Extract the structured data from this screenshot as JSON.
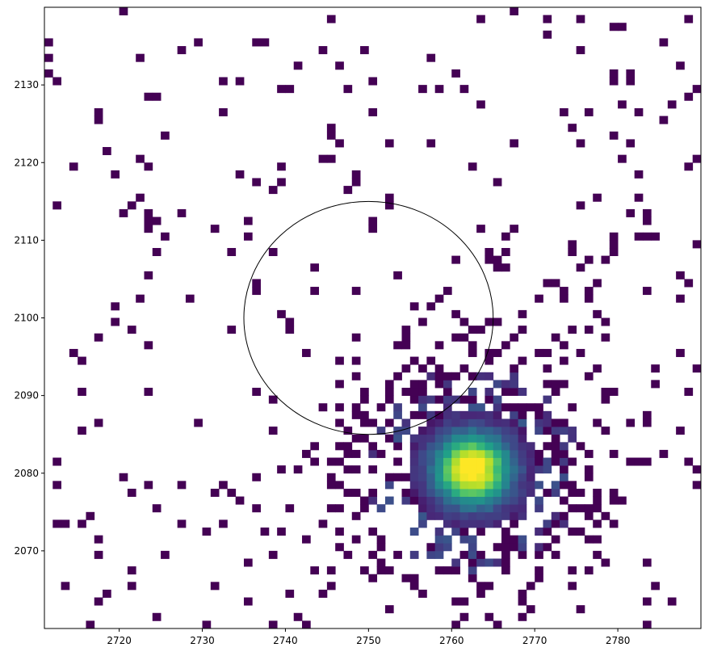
{
  "chart_data": {
    "type": "heatmap",
    "title": "",
    "xlabel": "",
    "ylabel": "",
    "xlim": [
      2711,
      2790
    ],
    "ylim": [
      2060,
      2140
    ],
    "x_ticks": [
      2720,
      2730,
      2740,
      2750,
      2760,
      2770,
      2780
    ],
    "y_ticks": [
      2070,
      2080,
      2090,
      2100,
      2110,
      2120,
      2130
    ],
    "x_tick_labels": [
      "2720",
      "2730",
      "2740",
      "2750",
      "2760",
      "2770",
      "2780"
    ],
    "y_tick_labels": [
      "2070",
      "2080",
      "2090",
      "2100",
      "2110",
      "2120",
      "2130"
    ],
    "colormap": "viridis",
    "background_color": "#ffffff",
    "frame_color": "#000000",
    "grid": false,
    "source_peak": {
      "x": 2762.5,
      "y": 2080.5
    },
    "aperture_circle": {
      "center": [
        2750,
        2100
      ],
      "radius": 15,
      "color": "#000000"
    }
  }
}
